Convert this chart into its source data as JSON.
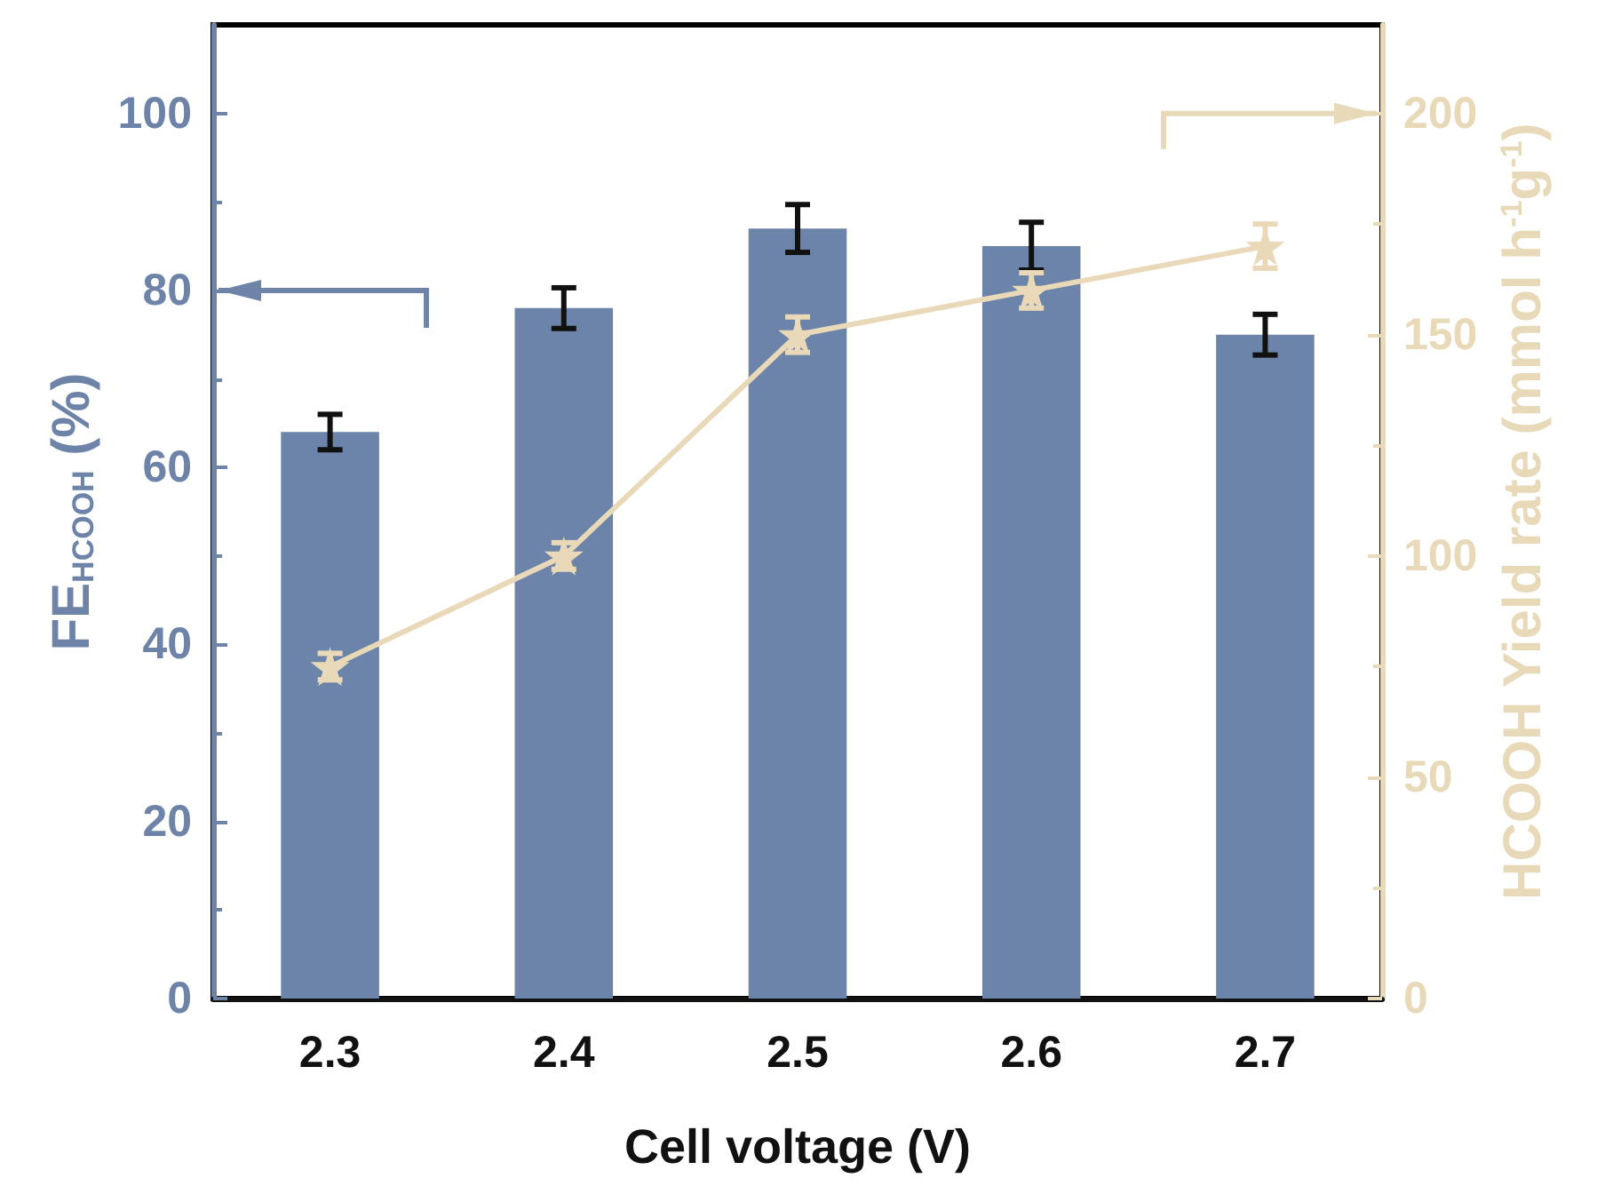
{
  "chart_data": {
    "type": "bar",
    "xlabel": "Cell voltage (V)",
    "ylabel": "FE$_{HCOOH}$ (%)",
    "y2label": "HCOOH Yield rate (mmol h$^{-1}$g$^{-1}$)",
    "categories": [
      "2.3",
      "2.4",
      "2.5",
      "2.6",
      "2.7"
    ],
    "series": [
      {
        "color": "#6c84a9",
        "values": [
          64,
          78,
          87,
          85,
          75
        ],
        "errors": [
          2,
          2.3,
          2.7,
          2.7,
          2.3
        ]
      },
      {
        "type": "line",
        "axis": "y2",
        "color": "#e9d9b8",
        "marker": "star",
        "line_style": "solid",
        "values": [
          75,
          100,
          150,
          160,
          170
        ],
        "errors": [
          3,
          3,
          4,
          4,
          5
        ]
      }
    ],
    "ylim": [
      0,
      110
    ],
    "yticks": [
      0,
      20,
      40,
      60,
      80,
      100
    ],
    "y2lim": [
      0,
      220
    ],
    "y2ticks": [
      0,
      50,
      100,
      150,
      200
    ],
    "grid": false
  }
}
